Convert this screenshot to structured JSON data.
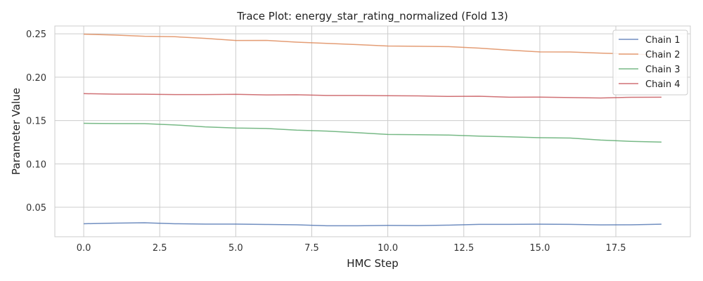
{
  "chart_data": {
    "type": "line",
    "title": "Trace Plot: energy_star_rating_normalized (Fold 13)",
    "xlabel": "HMC Step",
    "ylabel": "Parameter Value",
    "xlim": [
      -0.95,
      19.95
    ],
    "ylim": [
      0.016,
      0.259
    ],
    "x_ticks": [
      0.0,
      2.5,
      5.0,
      7.5,
      10.0,
      12.5,
      15.0,
      17.5
    ],
    "x_tick_labels": [
      "0.0",
      "2.5",
      "5.0",
      "7.5",
      "10.0",
      "12.5",
      "15.0",
      "17.5"
    ],
    "y_ticks": [
      0.05,
      0.1,
      0.15,
      0.2,
      0.25
    ],
    "y_tick_labels": [
      "0.05",
      "0.10",
      "0.15",
      "0.20",
      "0.25"
    ],
    "grid": true,
    "legend_position": "top-right",
    "x": [
      0,
      1,
      2,
      3,
      4,
      5,
      6,
      7,
      8,
      9,
      10,
      11,
      12,
      13,
      14,
      15,
      16,
      17,
      18,
      19
    ],
    "series": [
      {
        "name": "Chain 1",
        "color": "#4c72b0",
        "values": [
          0.031,
          0.0317,
          0.0321,
          0.031,
          0.0306,
          0.0306,
          0.0302,
          0.0298,
          0.0287,
          0.0287,
          0.0291,
          0.0289,
          0.0294,
          0.0303,
          0.0303,
          0.0305,
          0.0303,
          0.0297,
          0.0298,
          0.0305
        ]
      },
      {
        "name": "Chain 2",
        "color": "#dd8452",
        "values": [
          0.2496,
          0.2486,
          0.2472,
          0.2466,
          0.2447,
          0.2423,
          0.2424,
          0.2404,
          0.239,
          0.2375,
          0.2359,
          0.2356,
          0.2352,
          0.2335,
          0.2312,
          0.2291,
          0.229,
          0.2277,
          0.2267,
          0.2254
        ]
      },
      {
        "name": "Chain 3",
        "color": "#55a868",
        "values": [
          0.1468,
          0.1465,
          0.1464,
          0.1449,
          0.1427,
          0.1413,
          0.1408,
          0.1389,
          0.1378,
          0.136,
          0.134,
          0.1336,
          0.1332,
          0.132,
          0.1312,
          0.1302,
          0.1298,
          0.1275,
          0.126,
          0.1252
        ]
      },
      {
        "name": "Chain 4",
        "color": "#c44e52",
        "values": [
          0.181,
          0.1804,
          0.1803,
          0.1799,
          0.1799,
          0.1802,
          0.1795,
          0.1797,
          0.1789,
          0.1789,
          0.1786,
          0.1784,
          0.1778,
          0.178,
          0.1769,
          0.177,
          0.1765,
          0.176,
          0.1768,
          0.1769
        ]
      }
    ]
  }
}
